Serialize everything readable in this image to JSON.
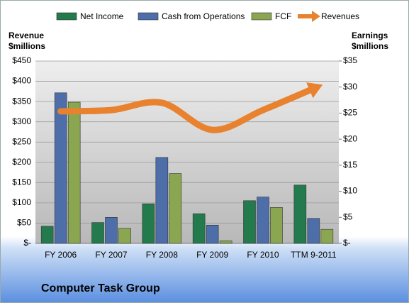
{
  "chart_data": {
    "type": "bar",
    "title": "Computer Task Group",
    "categories": [
      "FY 2006",
      "FY 2007",
      "FY 2008",
      "FY 2009",
      "FY 2010",
      "TTM 9-2011"
    ],
    "ylabel": [
      "Revenue",
      "$millions"
    ],
    "y2label": [
      "Earnings",
      "$millions"
    ],
    "ylim": [
      0,
      450
    ],
    "yticks": [
      {
        "value": 0,
        "label": "$-"
      },
      {
        "value": 50,
        "label": "$50"
      },
      {
        "value": 100,
        "label": "$100"
      },
      {
        "value": 150,
        "label": "$150"
      },
      {
        "value": 200,
        "label": "$200"
      },
      {
        "value": 250,
        "label": "$250"
      },
      {
        "value": 300,
        "label": "$300"
      },
      {
        "value": 350,
        "label": "$350"
      },
      {
        "value": 400,
        "label": "$400"
      },
      {
        "value": 450,
        "label": "$450"
      }
    ],
    "y2lim": [
      0,
      35
    ],
    "y2ticks": [
      {
        "value": 0,
        "label": "$-"
      },
      {
        "value": 5,
        "label": "$5"
      },
      {
        "value": 10,
        "label": "$10"
      },
      {
        "value": 15,
        "label": "$15"
      },
      {
        "value": 20,
        "label": "$20"
      },
      {
        "value": 25,
        "label": "$25"
      },
      {
        "value": 30,
        "label": "$30"
      },
      {
        "value": 35,
        "label": "$35"
      }
    ],
    "grid": true,
    "series": [
      {
        "name": "Net Income",
        "type": "bar",
        "axis": "y2",
        "color": "#237a4c",
        "values": [
          3.3,
          4.0,
          7.6,
          5.7,
          8.2,
          11.2
        ]
      },
      {
        "name": "Cash from Operations",
        "type": "bar",
        "axis": "y2",
        "color": "#4d6ea8",
        "values": [
          28.9,
          5.0,
          16.5,
          3.5,
          8.9,
          4.8
        ]
      },
      {
        "name": "FCF",
        "type": "bar",
        "axis": "y2",
        "color": "#8ba651",
        "values": [
          27.1,
          2.9,
          13.4,
          0.5,
          6.9,
          2.7
        ]
      },
      {
        "name": "Revenues",
        "type": "line",
        "color": "#e8822e",
        "values": [
          326,
          329,
          347,
          280,
          329,
          382
        ]
      }
    ]
  }
}
